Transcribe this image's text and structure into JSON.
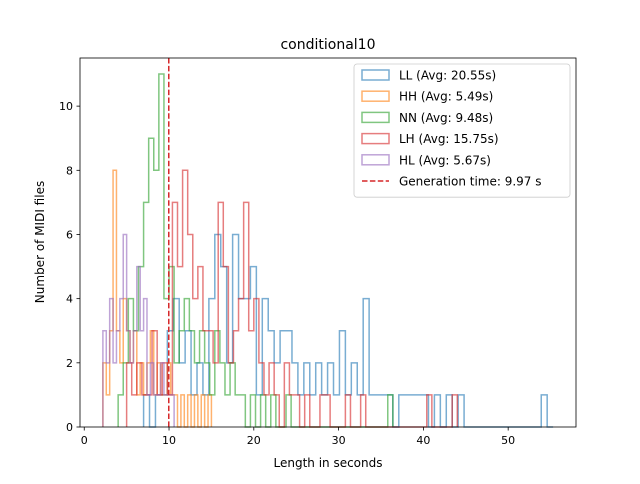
{
  "chart_data": {
    "type": "histogram-step",
    "title": "conditional10",
    "xlabel": "Length in seconds",
    "ylabel": "Number of MIDI files",
    "xlim": [
      -0.5,
      58
    ],
    "ylim": [
      0,
      11.5
    ],
    "xticks": [
      0,
      10,
      20,
      30,
      40,
      50
    ],
    "yticks": [
      0,
      2,
      4,
      6,
      8,
      10
    ],
    "grid": false,
    "legend_position": "top-right",
    "vline": {
      "x": 9.97,
      "label": "Generation time: 9.97 s",
      "color": "#d62728",
      "style": "dashed"
    },
    "series": [
      {
        "name": "LL (Avg: 20.55s)",
        "color": "#1f77b4",
        "bins": [
          [
            7.0,
            7.7,
            1
          ],
          [
            7.7,
            8.4,
            0
          ],
          [
            8.4,
            9.1,
            1
          ],
          [
            9.1,
            9.8,
            1
          ],
          [
            9.8,
            10.5,
            3
          ],
          [
            10.5,
            11.2,
            4
          ],
          [
            11.2,
            11.9,
            2
          ],
          [
            11.9,
            12.6,
            3
          ],
          [
            12.6,
            13.3,
            1
          ],
          [
            13.3,
            14.0,
            2
          ],
          [
            14.0,
            14.7,
            1
          ],
          [
            14.7,
            15.4,
            4
          ],
          [
            15.4,
            16.1,
            6
          ],
          [
            16.1,
            16.8,
            5
          ],
          [
            16.8,
            17.5,
            2
          ],
          [
            17.5,
            18.2,
            6
          ],
          [
            18.2,
            18.9,
            4
          ],
          [
            18.9,
            19.6,
            4
          ],
          [
            19.6,
            20.3,
            5
          ],
          [
            20.3,
            21.0,
            1
          ],
          [
            21.0,
            21.7,
            4
          ],
          [
            21.7,
            22.4,
            3
          ],
          [
            22.4,
            23.1,
            2
          ],
          [
            23.1,
            23.8,
            3
          ],
          [
            23.8,
            24.5,
            3
          ],
          [
            24.5,
            25.2,
            2
          ],
          [
            25.2,
            25.9,
            1
          ],
          [
            25.9,
            26.6,
            2
          ],
          [
            26.6,
            27.3,
            1
          ],
          [
            27.3,
            28.0,
            2
          ],
          [
            28.0,
            28.7,
            1
          ],
          [
            28.7,
            29.4,
            2
          ],
          [
            29.4,
            30.1,
            1
          ],
          [
            30.1,
            30.8,
            3
          ],
          [
            30.8,
            31.5,
            1
          ],
          [
            31.5,
            32.2,
            2
          ],
          [
            32.2,
            32.9,
            1
          ],
          [
            32.9,
            33.6,
            4
          ],
          [
            33.6,
            34.3,
            1
          ],
          [
            34.3,
            35.0,
            1
          ],
          [
            35.0,
            35.7,
            1
          ],
          [
            35.7,
            36.4,
            1
          ],
          [
            36.4,
            37.1,
            0
          ],
          [
            37.1,
            37.8,
            1
          ],
          [
            37.8,
            38.5,
            1
          ],
          [
            38.5,
            39.2,
            1
          ],
          [
            39.2,
            39.9,
            1
          ],
          [
            39.9,
            40.6,
            1
          ],
          [
            40.6,
            41.3,
            0
          ],
          [
            41.3,
            42.0,
            1
          ],
          [
            42.0,
            42.7,
            0
          ],
          [
            42.7,
            43.4,
            1
          ],
          [
            43.4,
            44.1,
            0
          ],
          [
            44.1,
            44.8,
            1
          ],
          [
            44.8,
            45.5,
            0
          ],
          [
            45.5,
            46.2,
            0
          ],
          [
            46.2,
            46.9,
            0
          ],
          [
            46.9,
            47.6,
            0
          ],
          [
            47.6,
            48.3,
            0
          ],
          [
            48.3,
            49.0,
            0
          ],
          [
            49.0,
            49.7,
            0
          ],
          [
            49.7,
            50.4,
            0
          ],
          [
            50.4,
            51.1,
            0
          ],
          [
            51.1,
            51.8,
            0
          ],
          [
            51.8,
            52.5,
            0
          ],
          [
            52.5,
            53.2,
            0
          ],
          [
            53.2,
            53.9,
            0
          ],
          [
            53.9,
            54.6,
            1
          ],
          [
            54.6,
            55.3,
            0
          ]
        ]
      },
      {
        "name": "HH (Avg: 5.49s)",
        "color": "#ff7f0e",
        "bins": [
          [
            2.2,
            2.6,
            2
          ],
          [
            2.6,
            3.0,
            1
          ],
          [
            3.0,
            3.4,
            3
          ],
          [
            3.4,
            3.8,
            8
          ],
          [
            3.8,
            4.2,
            3
          ],
          [
            4.2,
            4.6,
            2
          ],
          [
            4.6,
            5.0,
            4
          ],
          [
            5.0,
            5.4,
            3
          ],
          [
            5.4,
            5.8,
            2
          ],
          [
            5.8,
            6.2,
            3
          ],
          [
            6.2,
            6.6,
            1
          ],
          [
            6.6,
            7.0,
            2
          ],
          [
            7.0,
            7.4,
            1
          ],
          [
            7.4,
            7.8,
            2
          ],
          [
            7.8,
            8.2,
            3
          ],
          [
            8.2,
            8.6,
            1
          ],
          [
            8.6,
            9.0,
            2
          ],
          [
            9.0,
            9.4,
            1
          ],
          [
            9.4,
            9.8,
            1
          ],
          [
            9.8,
            10.2,
            2
          ],
          [
            10.2,
            10.6,
            1
          ],
          [
            10.6,
            11.0,
            1
          ],
          [
            11.0,
            11.4,
            0
          ],
          [
            11.4,
            11.8,
            1
          ],
          [
            11.8,
            12.2,
            0
          ],
          [
            12.2,
            12.6,
            1
          ],
          [
            12.6,
            13.0,
            0
          ],
          [
            13.0,
            13.4,
            1
          ],
          [
            13.4,
            13.8,
            0
          ],
          [
            13.8,
            14.2,
            1
          ],
          [
            14.2,
            14.6,
            0
          ],
          [
            14.6,
            15.0,
            1
          ]
        ]
      },
      {
        "name": "NN (Avg: 9.48s)",
        "color": "#2ca02c",
        "bins": [
          [
            4.0,
            4.6,
            1
          ],
          [
            4.6,
            5.2,
            2
          ],
          [
            5.2,
            5.8,
            4
          ],
          [
            5.8,
            6.4,
            3
          ],
          [
            6.4,
            7.0,
            5
          ],
          [
            7.0,
            7.6,
            7
          ],
          [
            7.6,
            8.2,
            9
          ],
          [
            8.2,
            8.8,
            8
          ],
          [
            8.8,
            9.4,
            11
          ],
          [
            9.4,
            10.0,
            4
          ],
          [
            10.0,
            10.6,
            5
          ],
          [
            10.6,
            11.2,
            2
          ],
          [
            11.2,
            11.8,
            3
          ],
          [
            11.8,
            12.4,
            4
          ],
          [
            12.4,
            13.0,
            3
          ],
          [
            13.0,
            13.6,
            2
          ],
          [
            13.6,
            14.2,
            3
          ],
          [
            14.2,
            14.8,
            2
          ],
          [
            14.8,
            15.4,
            1
          ],
          [
            15.4,
            16.0,
            3
          ],
          [
            16.0,
            16.6,
            2
          ],
          [
            16.6,
            17.2,
            1
          ],
          [
            17.2,
            17.8,
            2
          ],
          [
            17.8,
            18.4,
            1
          ],
          [
            18.4,
            19.0,
            1
          ],
          [
            19.0,
            19.6,
            0
          ],
          [
            19.6,
            20.2,
            1
          ],
          [
            20.2,
            20.8,
            0
          ],
          [
            20.8,
            21.4,
            1
          ],
          [
            21.4,
            22.0,
            0
          ],
          [
            22.0,
            22.6,
            1
          ],
          [
            22.6,
            23.2,
            0
          ],
          [
            23.2,
            23.8,
            0
          ],
          [
            23.8,
            24.4,
            1
          ],
          [
            24.4,
            25.0,
            0
          ],
          [
            25.0,
            25.6,
            0
          ],
          [
            25.6,
            26.2,
            0
          ],
          [
            26.2,
            26.8,
            0
          ],
          [
            26.8,
            27.4,
            0
          ],
          [
            27.4,
            28.0,
            0
          ],
          [
            28.0,
            28.6,
            0
          ],
          [
            28.6,
            29.2,
            0
          ],
          [
            29.2,
            29.8,
            0
          ],
          [
            29.8,
            30.4,
            0
          ],
          [
            30.4,
            31.0,
            0
          ],
          [
            31.0,
            31.6,
            0
          ],
          [
            31.6,
            32.2,
            0
          ],
          [
            32.2,
            32.8,
            0
          ],
          [
            32.8,
            33.4,
            0
          ],
          [
            33.4,
            34.0,
            0
          ],
          [
            34.0,
            34.6,
            0
          ],
          [
            34.6,
            35.2,
            0
          ],
          [
            35.2,
            35.8,
            0
          ],
          [
            35.8,
            36.4,
            1
          ]
        ]
      },
      {
        "name": "LH (Avg: 15.75s)",
        "color": "#d62728",
        "bins": [
          [
            5.0,
            5.6,
            2
          ],
          [
            5.6,
            6.2,
            1
          ],
          [
            6.2,
            6.8,
            2
          ],
          [
            6.8,
            7.4,
            1
          ],
          [
            7.4,
            8.0,
            1
          ],
          [
            8.0,
            8.6,
            3
          ],
          [
            8.6,
            9.2,
            1
          ],
          [
            9.2,
            9.8,
            2
          ],
          [
            9.8,
            10.4,
            1
          ],
          [
            10.4,
            11.0,
            7
          ],
          [
            11.0,
            11.6,
            5
          ],
          [
            11.6,
            12.2,
            8
          ],
          [
            12.2,
            12.8,
            6
          ],
          [
            12.8,
            13.4,
            4
          ],
          [
            13.4,
            14.0,
            5
          ],
          [
            14.0,
            14.6,
            3
          ],
          [
            14.6,
            15.2,
            3
          ],
          [
            15.2,
            15.8,
            2
          ],
          [
            15.8,
            16.4,
            7
          ],
          [
            16.4,
            17.0,
            5
          ],
          [
            17.0,
            17.6,
            2
          ],
          [
            17.6,
            18.2,
            3
          ],
          [
            18.2,
            18.8,
            4
          ],
          [
            18.8,
            19.4,
            7
          ],
          [
            19.4,
            20.0,
            3
          ],
          [
            20.0,
            20.6,
            4
          ],
          [
            20.6,
            21.2,
            2
          ],
          [
            21.2,
            21.8,
            1
          ],
          [
            21.8,
            22.4,
            2
          ],
          [
            22.4,
            23.0,
            1
          ],
          [
            23.0,
            23.6,
            0
          ],
          [
            23.6,
            24.2,
            2
          ],
          [
            24.2,
            24.8,
            1
          ],
          [
            24.8,
            25.4,
            1
          ],
          [
            25.4,
            26.0,
            0
          ],
          [
            26.0,
            26.6,
            1
          ],
          [
            26.6,
            27.2,
            0
          ],
          [
            27.2,
            27.8,
            0
          ],
          [
            27.8,
            28.4,
            1
          ],
          [
            28.4,
            29.0,
            1
          ],
          [
            29.0,
            29.6,
            0
          ],
          [
            29.6,
            30.2,
            0
          ],
          [
            30.2,
            30.8,
            0
          ],
          [
            30.8,
            31.4,
            1
          ],
          [
            31.4,
            32.0,
            0
          ],
          [
            32.0,
            32.6,
            0
          ],
          [
            32.6,
            33.2,
            1
          ],
          [
            33.2,
            33.8,
            0
          ],
          [
            33.8,
            34.4,
            0
          ],
          [
            34.4,
            35.0,
            0
          ],
          [
            35.0,
            35.6,
            0
          ],
          [
            35.6,
            36.2,
            0
          ],
          [
            36.2,
            36.8,
            0
          ],
          [
            36.8,
            37.4,
            0
          ],
          [
            37.4,
            38.0,
            0
          ],
          [
            38.0,
            38.6,
            0
          ],
          [
            38.6,
            39.2,
            0
          ],
          [
            39.2,
            39.8,
            0
          ],
          [
            39.8,
            40.4,
            0
          ],
          [
            40.4,
            41.0,
            1
          ],
          [
            41.0,
            41.6,
            0
          ],
          [
            41.6,
            42.2,
            0
          ],
          [
            42.2,
            42.8,
            0
          ],
          [
            42.8,
            43.4,
            0
          ],
          [
            43.4,
            44.0,
            1
          ]
        ]
      },
      {
        "name": "HL (Avg: 5.67s)",
        "color": "#9467bd",
        "bins": [
          [
            2.2,
            2.6,
            3
          ],
          [
            2.6,
            3.0,
            2
          ],
          [
            3.0,
            3.4,
            4
          ],
          [
            3.4,
            3.8,
            2
          ],
          [
            3.8,
            4.2,
            3
          ],
          [
            4.2,
            4.6,
            4
          ],
          [
            4.6,
            5.0,
            6
          ],
          [
            5.0,
            5.4,
            3
          ],
          [
            5.4,
            5.8,
            2
          ],
          [
            5.8,
            6.2,
            3
          ],
          [
            6.2,
            6.6,
            5
          ],
          [
            6.6,
            7.0,
            3
          ],
          [
            7.0,
            7.4,
            4
          ],
          [
            7.4,
            7.8,
            1
          ],
          [
            7.8,
            8.2,
            2
          ],
          [
            8.2,
            8.6,
            1
          ],
          [
            8.6,
            9.0,
            1
          ],
          [
            9.0,
            9.4,
            2
          ],
          [
            9.4,
            9.8,
            1
          ],
          [
            9.8,
            10.2,
            1
          ],
          [
            10.2,
            10.6,
            1
          ]
        ]
      }
    ]
  }
}
